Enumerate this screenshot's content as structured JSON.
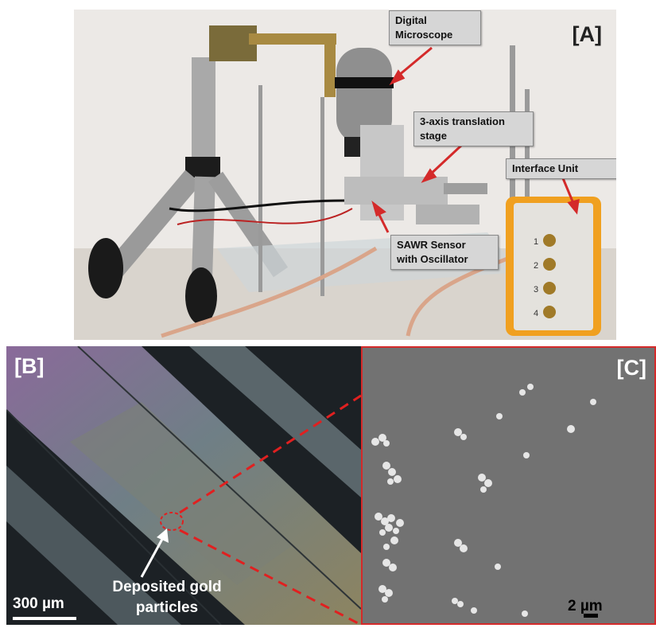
{
  "panels": {
    "a": {
      "label": "[A]",
      "callouts": {
        "microscope": "Digital\nMicroscope",
        "stage": "3-axis translation\nstage",
        "interface": "Interface Unit",
        "sawr": "SAWR Sensor\nwith Oscillator"
      },
      "interface_unit_labels": [
        "1",
        "2",
        "3",
        "4"
      ]
    },
    "b": {
      "label": "[B]",
      "annotation": "Deposited gold\nparticles",
      "scale_bar": "300 µm"
    },
    "c": {
      "label": "[C]",
      "scale_bar": "2 µm"
    }
  },
  "colors": {
    "arrow_red": "#d42a2a",
    "callout_bg": "#d6d6d6",
    "interface_orange": "#f0a020"
  }
}
